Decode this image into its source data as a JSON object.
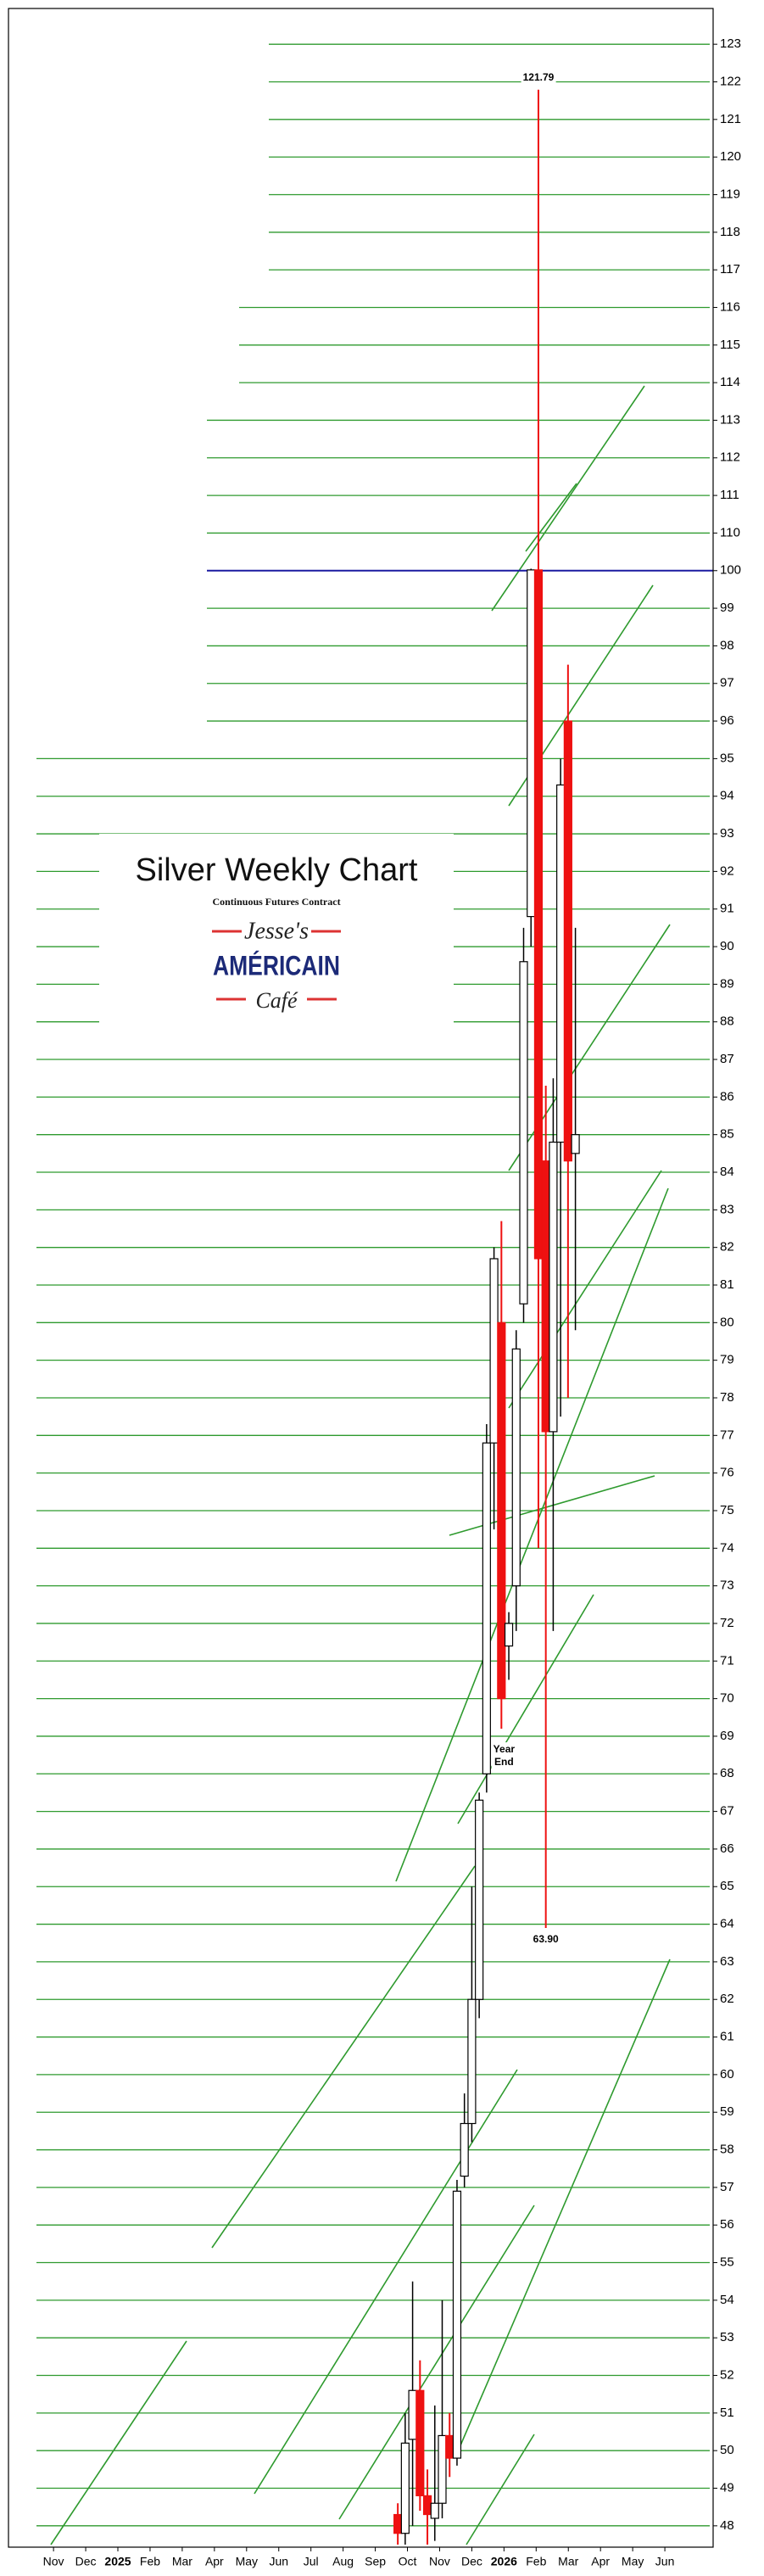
{
  "chart_data": {
    "type": "candlestick",
    "title": "Silver Weekly Chart",
    "subtitle": "Continuous Futures Contract",
    "logo": {
      "line1": "Jesse's",
      "line2": "AMÉRICAIN",
      "line3": "Café"
    },
    "xlim": [
      -1.4,
      20.5
    ],
    "xticks": [
      {
        "value": 0,
        "label": "Nov"
      },
      {
        "value": 1,
        "label": "Dec"
      },
      {
        "value": 2,
        "label": "2025"
      },
      {
        "value": 3,
        "label": "Feb"
      },
      {
        "value": 4,
        "label": "Mar"
      },
      {
        "value": 5,
        "label": "Apr"
      },
      {
        "value": 6,
        "label": "May"
      },
      {
        "value": 7,
        "label": "Jun"
      },
      {
        "value": 8,
        "label": "Jul"
      },
      {
        "value": 9,
        "label": "Aug"
      },
      {
        "value": 10,
        "label": "Sep"
      },
      {
        "value": 11,
        "label": "Oct"
      },
      {
        "value": 12,
        "label": "Nov"
      },
      {
        "value": 13,
        "label": "Dec"
      },
      {
        "value": 14,
        "label": "2026"
      },
      {
        "value": 15,
        "label": "Feb"
      },
      {
        "value": 16,
        "label": "Mar"
      },
      {
        "value": 17,
        "label": "Apr"
      },
      {
        "value": 18,
        "label": "May"
      },
      {
        "value": 19,
        "label": "Jun"
      }
    ],
    "ylim": [
      47.5,
      123.5
    ],
    "ybreak": [
      100,
      110
    ],
    "yticks": [
      48,
      49,
      50,
      51,
      52,
      53,
      54,
      55,
      56,
      57,
      58,
      59,
      60,
      61,
      62,
      63,
      64,
      65,
      66,
      67,
      68,
      69,
      70,
      71,
      72,
      73,
      74,
      75,
      76,
      77,
      78,
      79,
      80,
      81,
      82,
      83,
      84,
      85,
      86,
      87,
      88,
      89,
      90,
      91,
      92,
      93,
      94,
      95,
      96,
      97,
      98,
      99,
      100,
      110,
      111,
      112,
      113,
      114,
      115,
      116,
      117,
      118,
      119,
      120,
      121,
      122,
      123
    ],
    "grid": true,
    "grid_color": "#2e9a2e",
    "up_color": "#ffffff",
    "down_color": "#ee1111",
    "hlines": [
      {
        "value": 100,
        "color": "#1a1aa0"
      }
    ],
    "x": [
      10.7,
      10.93,
      11.16,
      11.39,
      11.62,
      11.85,
      12.08,
      12.31,
      12.54,
      12.77,
      13.0,
      13.23,
      13.46,
      13.69,
      13.92,
      14.15,
      14.38,
      14.61,
      14.84,
      15.07,
      15.3,
      15.53,
      15.76,
      15.99,
      16.22
    ],
    "open": [
      48.3,
      47.8,
      50.3,
      51.6,
      48.8,
      48.2,
      48.6,
      50.4,
      49.8,
      57.3,
      58.7,
      62.0,
      68.0,
      76.8,
      80.0,
      71.4,
      73.0,
      80.5,
      90.8,
      100.2,
      84.3,
      77.1,
      84.8,
      96.0,
      84.5
    ],
    "high": [
      48.6,
      51.0,
      54.5,
      52.4,
      49.5,
      51.2,
      54.0,
      51.0,
      57.2,
      59.5,
      65.0,
      67.5,
      77.3,
      82.0,
      82.7,
      72.3,
      79.8,
      90.5,
      100.5,
      121.79,
      86.3,
      86.5,
      95.0,
      97.5,
      90.5
    ],
    "low": [
      47.5,
      47.5,
      48.0,
      48.4,
      47.5,
      47.6,
      48.2,
      49.3,
      49.6,
      57.0,
      58.2,
      61.5,
      67.5,
      74.5,
      69.2,
      70.5,
      71.8,
      80.0,
      90.0,
      74.0,
      63.9,
      71.8,
      77.5,
      78.0,
      79.8
    ],
    "close": [
      47.8,
      50.2,
      51.6,
      48.8,
      48.3,
      48.6,
      50.4,
      49.8,
      56.9,
      58.7,
      62.0,
      67.3,
      76.8,
      81.7,
      70.0,
      72.0,
      79.3,
      89.6,
      100.2,
      81.7,
      77.1,
      84.8,
      94.3,
      84.3,
      85.0
    ],
    "annotations": [
      {
        "text": "121.79",
        "x": 15.07,
        "y": 121.79,
        "place": "above"
      },
      {
        "text": "63.90",
        "x": 15.3,
        "y": 63.9,
        "place": "below"
      },
      {
        "text": "Year End",
        "x": 14.0,
        "y": 69.0,
        "place": "below"
      }
    ]
  }
}
